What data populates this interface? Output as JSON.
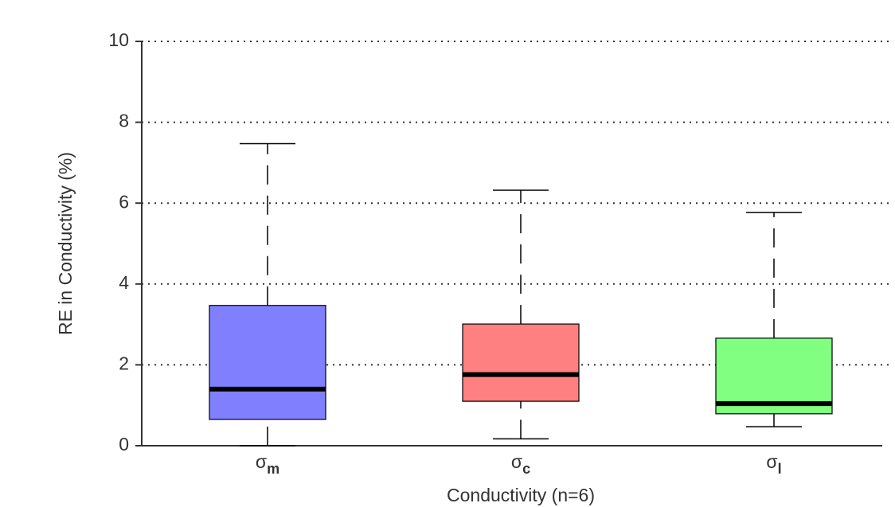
{
  "chart_data": {
    "type": "box",
    "x_label": "Conductivity (n=6)",
    "y_label": "RE in Conductivity (%)",
    "categories": [
      {
        "symbol": "σ",
        "sub": "m"
      },
      {
        "symbol": "σ",
        "sub": "c"
      },
      {
        "symbol": "σ",
        "sub": "l"
      }
    ],
    "boxes": [
      {
        "whisker_low": 0,
        "q1": 0.65,
        "median": 1.4,
        "q3": 3.47,
        "whisker_high": 7.47,
        "color": "#8080ff"
      },
      {
        "whisker_low": 0.17,
        "q1": 1.1,
        "median": 1.76,
        "q3": 3.01,
        "whisker_high": 6.32,
        "color": "#ff8080"
      },
      {
        "whisker_low": 0.47,
        "q1": 0.79,
        "median": 1.04,
        "q3": 2.66,
        "whisker_high": 5.77,
        "color": "#80ff80"
      }
    ],
    "ylim": [
      0,
      10
    ],
    "yticks": [
      0,
      2,
      4,
      6,
      8,
      10
    ],
    "grid": true
  }
}
